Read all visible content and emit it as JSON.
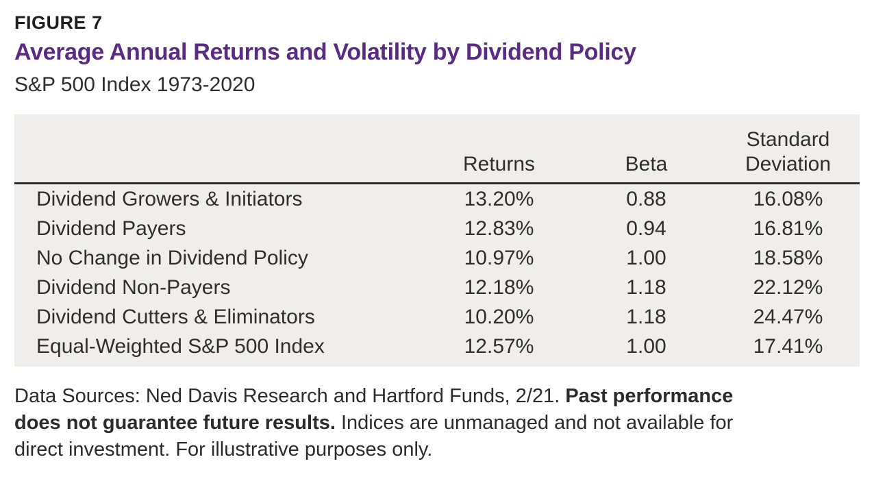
{
  "figure": {
    "label": "FIGURE 7",
    "title": "Average Annual Returns and Volatility by Dividend Policy",
    "subtitle": "S&P 500 Index 1973-2020"
  },
  "colors": {
    "title_purple": "#5a2b82",
    "panel_background": "#efeeed",
    "body_text": "#2e2e2e",
    "header_rule": "#2c2b2a"
  },
  "table": {
    "column_headers": {
      "policy": "",
      "returns": "Returns",
      "beta": "Beta",
      "std_dev": "Standard Deviation"
    },
    "rows": [
      {
        "label": "Dividend Growers & Initiators",
        "returns": "13.20%",
        "beta": "0.88",
        "std_dev": "16.08%"
      },
      {
        "label": "Dividend Payers",
        "returns": "12.83%",
        "beta": "0.94",
        "std_dev": "16.81%"
      },
      {
        "label": "No Change in Dividend Policy",
        "returns": "10.97%",
        "beta": "1.00",
        "std_dev": "18.58%"
      },
      {
        "label": "Dividend Non-Payers",
        "returns": "12.18%",
        "beta": "1.18",
        "std_dev": "22.12%"
      },
      {
        "label": "Dividend Cutters & Eliminators",
        "returns": "10.20%",
        "beta": "1.18",
        "std_dev": "24.47%"
      },
      {
        "label": "Equal-Weighted S&P 500 Index",
        "returns": "12.57%",
        "beta": "1.00",
        "std_dev": "17.41%"
      }
    ]
  },
  "footnote": {
    "line1_normal": "Data Sources: Ned Davis Research and Hartford Funds, 2/21. ",
    "line1_bold": "Past performance",
    "line2_bold": "does not guarantee future results.",
    "line2_normal": " Indices are unmanaged and not available for",
    "line3_normal": "direct investment. For illustrative purposes only."
  }
}
